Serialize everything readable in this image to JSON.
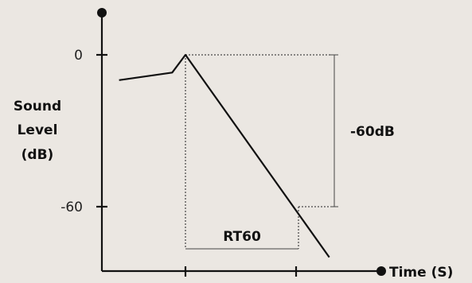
{
  "chart_data": {
    "type": "line",
    "title": "",
    "xlabel": "Time (S)",
    "ylabel_lines": [
      "Sound",
      "Level",
      "(dB)"
    ],
    "y_ticks": [
      {
        "value": 0,
        "label": "0"
      },
      {
        "value": -60,
        "label": "-60"
      }
    ],
    "ylim": [
      -100,
      35
    ],
    "x_ticks": [
      1.0,
      2.0
    ],
    "xlim": [
      -0.6,
      3.35
    ],
    "series": [
      {
        "points": [
          {
            "x": -0.6,
            "y": -10
          },
          {
            "x": -0.12,
            "y": -7
          },
          {
            "x": 0.0,
            "y": 0
          },
          {
            "x": 1.3,
            "y": -80
          }
        ]
      }
    ],
    "annotations": {
      "rt60_label": "RT60",
      "rt60_range": [
        1.0,
        2.0
      ],
      "decay_label": "-60dB",
      "decay_range": [
        0,
        -60
      ]
    },
    "colors": {
      "background": "#ebe7e2",
      "ink": "#111111"
    }
  }
}
